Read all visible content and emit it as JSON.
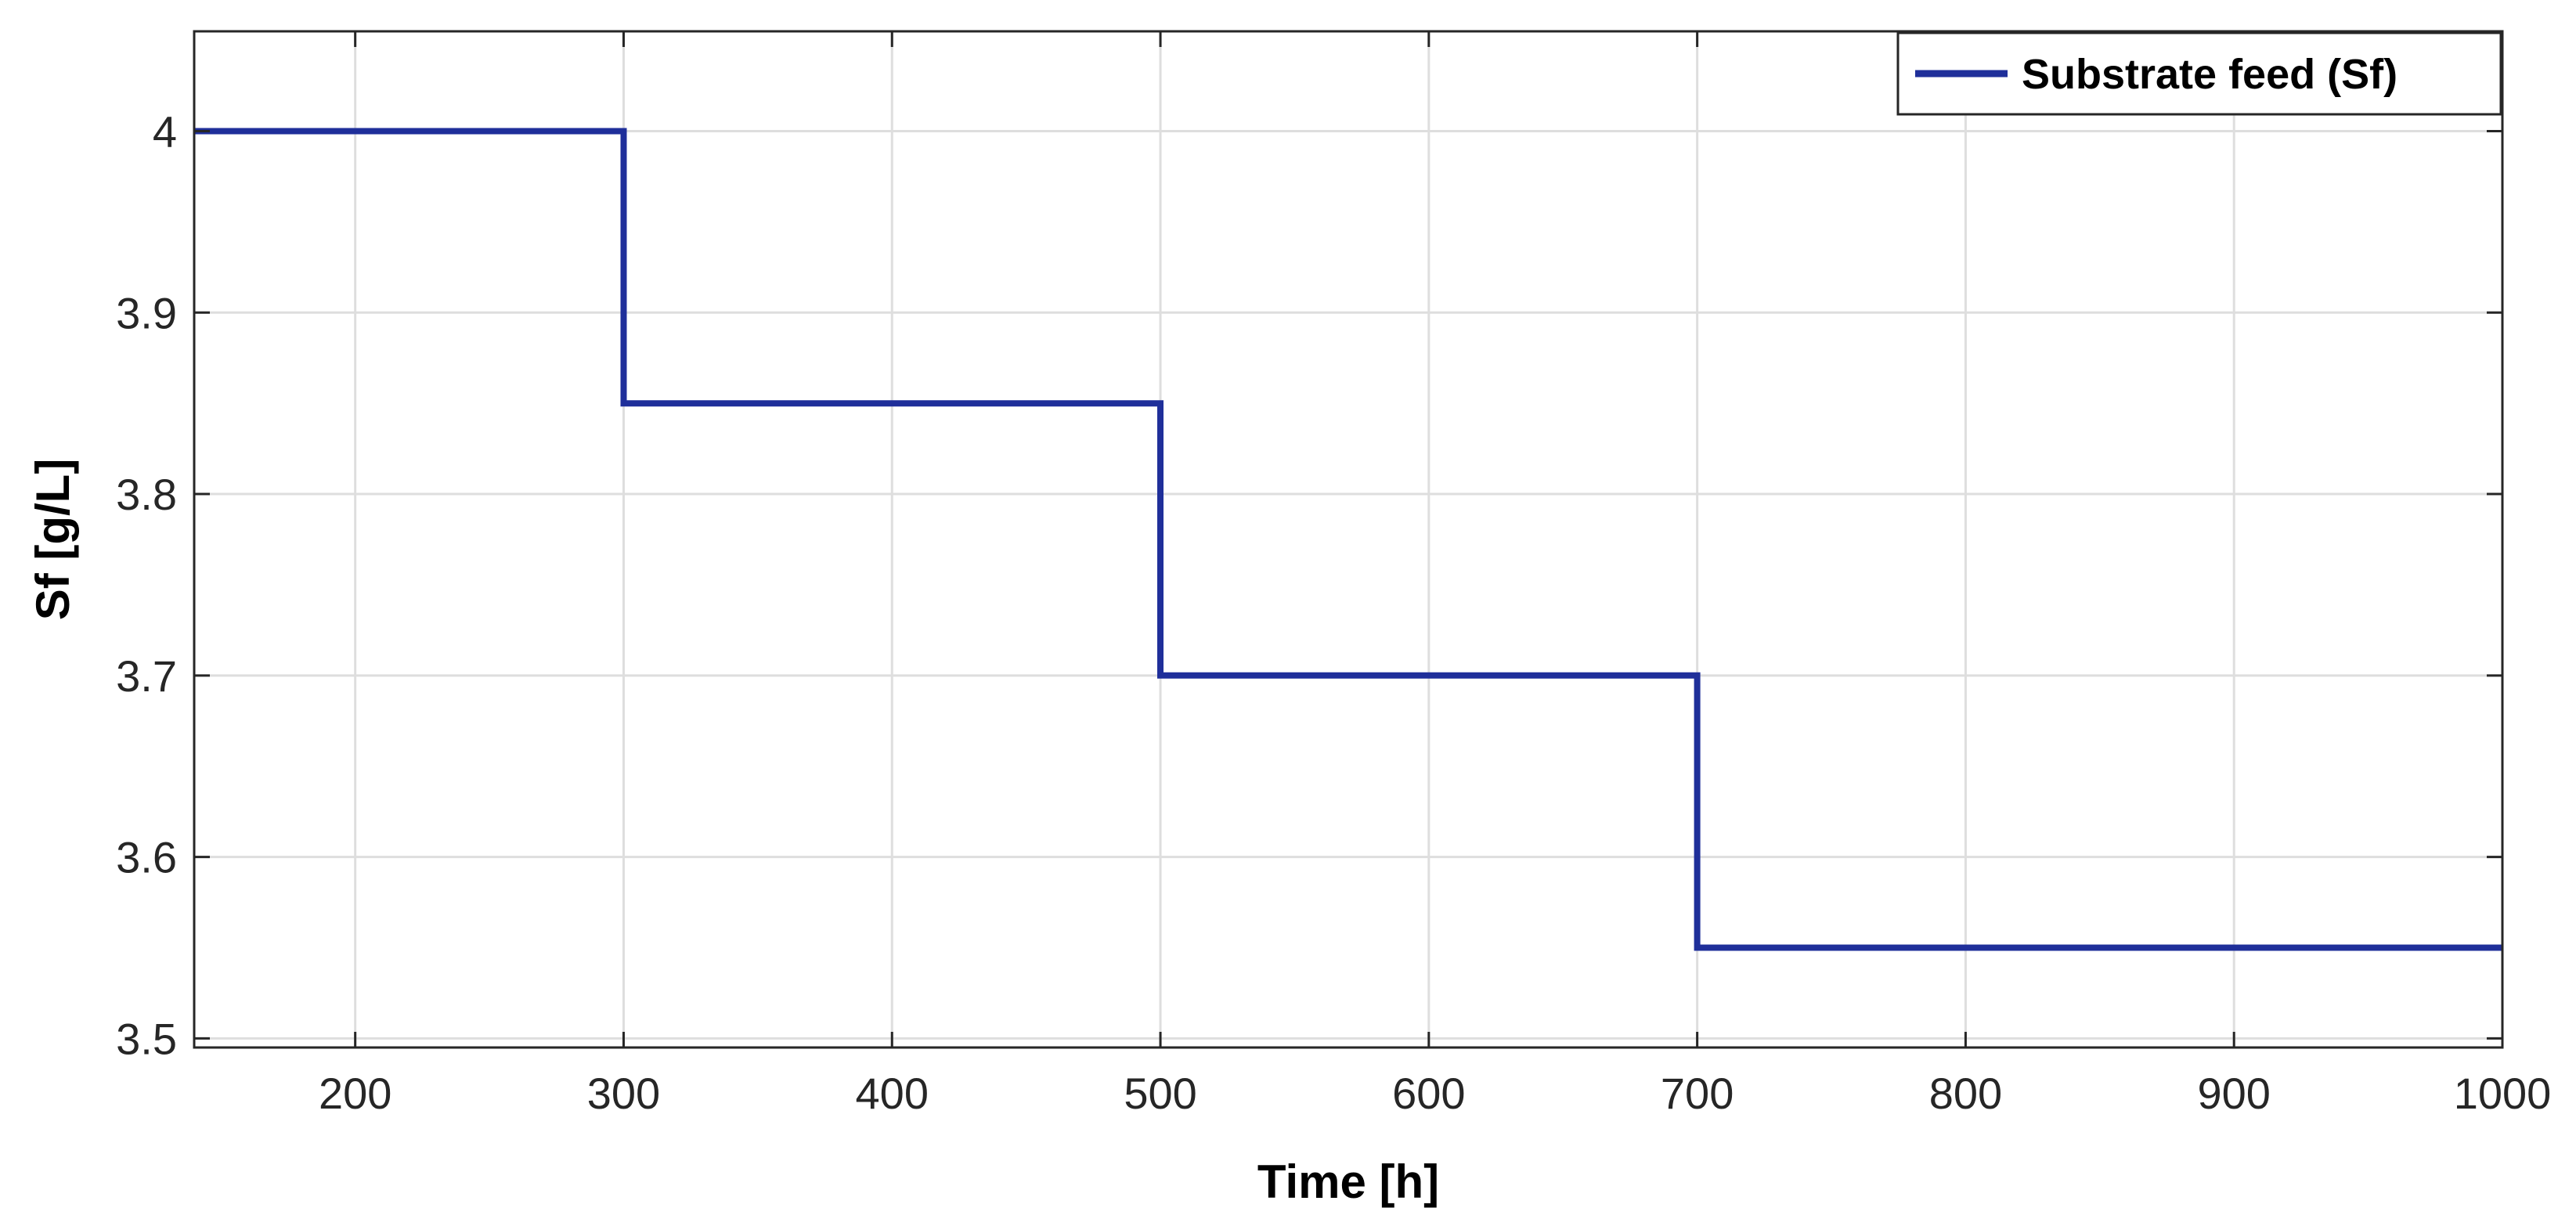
{
  "chart_data": {
    "type": "line",
    "xlabel": "Time [h]",
    "ylabel": "Sf [g/L]",
    "xlim": [
      140,
      1000
    ],
    "ylim": [
      3.495,
      4.055
    ],
    "xticks": [
      200,
      300,
      400,
      500,
      600,
      700,
      800,
      900,
      1000
    ],
    "xtick_labels": [
      "200",
      "300",
      "400",
      "500",
      "600",
      "700",
      "800",
      "900",
      "1000"
    ],
    "yticks": [
      3.5,
      3.6,
      3.7,
      3.8,
      3.9,
      4.0
    ],
    "ytick_labels": [
      "3.5",
      "3.6",
      "3.7",
      "3.8",
      "3.9",
      "4"
    ],
    "grid": true,
    "legend_position": "top-right",
    "series": [
      {
        "name": "Substrate feed (Sf)",
        "color": "#1f2f9a",
        "x": [
          140,
          300,
          300,
          500,
          500,
          700,
          700,
          1000
        ],
        "y": [
          4.0,
          4.0,
          3.85,
          3.85,
          3.7,
          3.7,
          3.55,
          3.55
        ]
      }
    ]
  }
}
